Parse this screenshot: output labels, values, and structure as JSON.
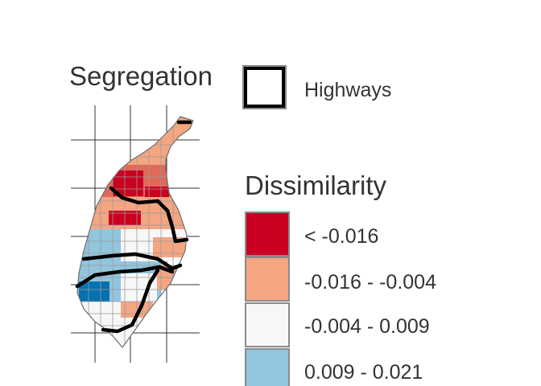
{
  "map": {
    "title": "Segregation"
  },
  "legend": {
    "highways": {
      "label": "Highways",
      "stroke_color": "#000000"
    },
    "dissimilarity": {
      "title": "Dissimilarity",
      "classes": [
        {
          "label": "< -0.016",
          "color": "#ca0020"
        },
        {
          "label": "-0.016 - -0.004",
          "color": "#f4a582"
        },
        {
          "label": "-0.004 - 0.009",
          "color": "#f7f7f7"
        },
        {
          "label": "0.009 - 0.021",
          "color": "#92c5de"
        }
      ],
      "extra_class_color": "#0571b0"
    }
  }
}
